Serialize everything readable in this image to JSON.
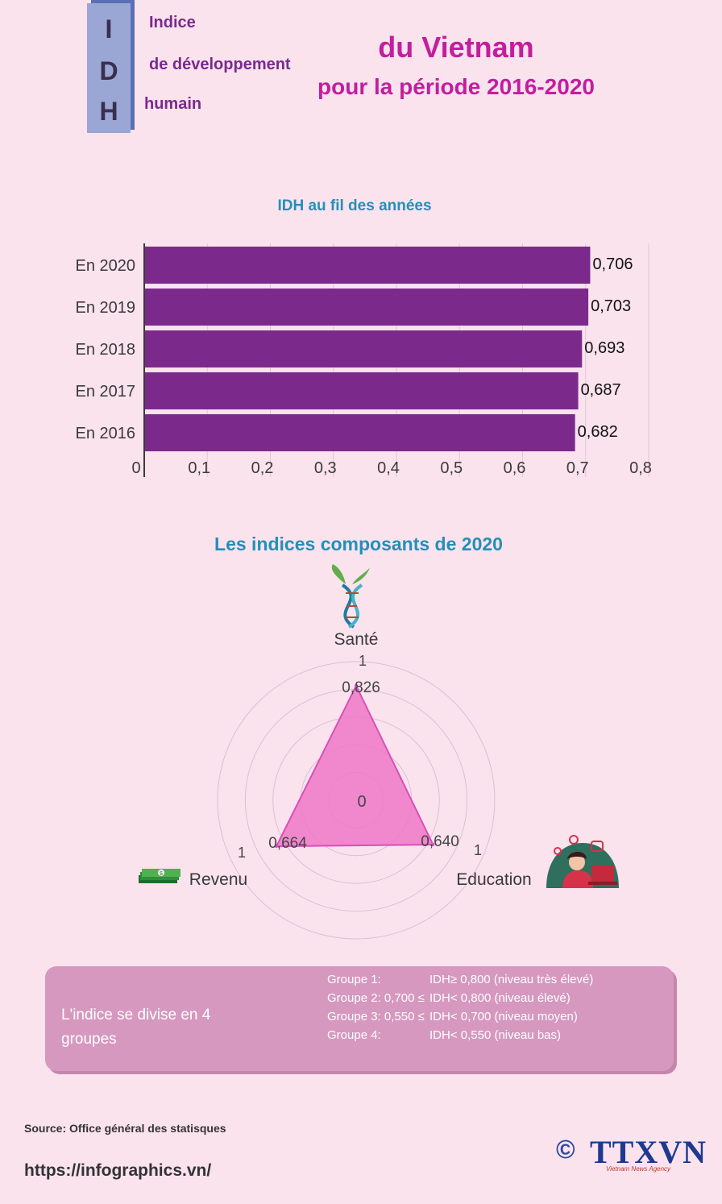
{
  "header": {
    "letters": [
      "I",
      "D",
      "H"
    ],
    "words": [
      "Indice",
      "de développement",
      "humain"
    ],
    "title_line1": "du Vietnam",
    "title_line2": "pour la période 2016-2020"
  },
  "colors": {
    "background": "#fbe3ee",
    "bar": "#7b2a8c",
    "title_pink": "#c21e9e",
    "title_blue": "#2290b8",
    "radar_fill": "#ee78c8",
    "groups_box": "#d698bf"
  },
  "chart_data": [
    {
      "type": "bar",
      "orientation": "horizontal",
      "title": "IDH au fil des années",
      "categories": [
        "En 2020",
        "En 2019",
        "En 2018",
        "En 2017",
        "En 2016"
      ],
      "values": [
        0.706,
        0.703,
        0.693,
        0.687,
        0.682
      ],
      "value_labels": [
        "0,706",
        "0,703",
        "0,693",
        "0,687",
        "0,682"
      ],
      "xlim": [
        0,
        0.8
      ],
      "x_ticks": [
        0,
        0.1,
        0.2,
        0.3,
        0.4,
        0.5,
        0.6,
        0.7,
        0.8
      ],
      "x_tick_labels": [
        "0",
        "0,1",
        "0,2",
        "0,3",
        "0,4",
        "0,5",
        "0,6",
        "0,7",
        "0,8"
      ],
      "grid": true
    },
    {
      "type": "radar",
      "title": "Les indices composants de 2020",
      "axes": [
        "Santé",
        "Education",
        "Revenu"
      ],
      "values": [
        0.826,
        0.64,
        0.664
      ],
      "value_labels": [
        "0,826",
        "0,640",
        "0,664"
      ],
      "range": [
        0,
        1
      ],
      "center_label": "0",
      "max_label": "1"
    }
  ],
  "groups": {
    "lead": "L'indice se divise en 4 groupes",
    "rows": [
      {
        "name": "Groupe 1:",
        "rule": "IDH≥ 0,800 (niveau très élevé)"
      },
      {
        "name": "Groupe 2: 0,700 ≤",
        "rule": "IDH< 0,800 (niveau élevé)"
      },
      {
        "name": "Groupe 3: 0,550 ≤",
        "rule": "IDH< 0,700 (niveau moyen)"
      },
      {
        "name": "Groupe 4:",
        "rule": "IDH< 0,550 (niveau bas)"
      }
    ]
  },
  "footer": {
    "source": "Source: Office général des statisques",
    "url": "https://infographics.vn/",
    "copyright": "©",
    "brand": "TTXVN",
    "brand_sub": "Vietnam News Agency"
  },
  "icons": {
    "health": "dna-leaf-icon",
    "income": "money-stack-icon",
    "education": "student-laptop-icon"
  }
}
